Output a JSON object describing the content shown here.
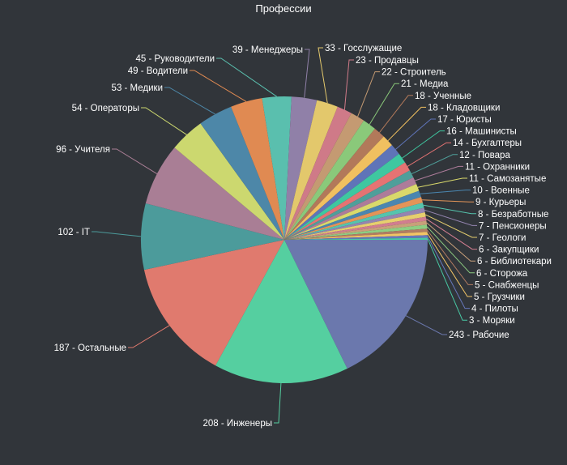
{
  "chart_data": {
    "type": "pie",
    "title": "Профессии",
    "slices": [
      {
        "label": "243 - Рабочие",
        "name": "Рабочие",
        "value": 243,
        "color": "#6b78ad"
      },
      {
        "label": "208 - Инженеры",
        "name": "Инженеры",
        "value": 208,
        "color": "#55cfa0"
      },
      {
        "label": "187 - Остальные",
        "name": "Остальные",
        "value": 187,
        "color": "#e07a6e"
      },
      {
        "label": "102 - IT",
        "name": "IT",
        "value": 102,
        "color": "#4c9b9b"
      },
      {
        "label": "96 - Учителя",
        "name": "Учителя",
        "value": 96,
        "color": "#a97e95"
      },
      {
        "label": "54 - Операторы",
        "name": "Операторы",
        "value": 54,
        "color": "#ccd86f"
      },
      {
        "label": "53 - Медики",
        "name": "Медики",
        "value": 53,
        "color": "#4d87a8"
      },
      {
        "label": "49 - Водители",
        "name": "Водители",
        "value": 49,
        "color": "#e08a52"
      },
      {
        "label": "45 - Руководители",
        "name": "Руководители",
        "value": 45,
        "color": "#5abfae"
      },
      {
        "label": "39 - Менеджеры",
        "name": "Менеджеры",
        "value": 39,
        "color": "#9080a8"
      },
      {
        "label": "33 - Госслужащие",
        "name": "Госслужащие",
        "value": 33,
        "color": "#e3c86c"
      },
      {
        "label": "23 - Продавцы",
        "name": "Продавцы",
        "value": 23,
        "color": "#cf7a88"
      },
      {
        "label": "22 - Строитель",
        "name": "Строитель",
        "value": 22,
        "color": "#c49a72"
      },
      {
        "label": "21 - Медиа",
        "name": "Медиа",
        "value": 21,
        "color": "#8ac97a"
      },
      {
        "label": "18 - Ученные",
        "name": "Ученные",
        "value": 18,
        "color": "#b2795a"
      },
      {
        "label": "18 - Кладовщики",
        "name": "Кладовщики",
        "value": 18,
        "color": "#f0c060"
      },
      {
        "label": "17 - Юристы",
        "name": "Юристы",
        "value": 17,
        "color": "#5f74b8"
      },
      {
        "label": "16 - Машинисты",
        "name": "Машинисты",
        "value": 16,
        "color": "#3fc7a0"
      },
      {
        "label": "14 - Бухгалтеры",
        "name": "Бухгалтеры",
        "value": 14,
        "color": "#e57373"
      },
      {
        "label": "12 - Повара",
        "name": "Повара",
        "value": 12,
        "color": "#4f9f9a"
      },
      {
        "label": "11 - Охранники",
        "name": "Охранники",
        "value": 11,
        "color": "#ad7c9a"
      },
      {
        "label": "11 - Самозанятые",
        "name": "Самозанятые",
        "value": 11,
        "color": "#d9d96b"
      },
      {
        "label": "10 - Военные",
        "name": "Военные",
        "value": 10,
        "color": "#4a86b0"
      },
      {
        "label": "9 - Курьеры",
        "name": "Курьеры",
        "value": 9,
        "color": "#e39458"
      },
      {
        "label": "8 - Безработные",
        "name": "Безработные",
        "value": 8,
        "color": "#55c4ad"
      },
      {
        "label": "7 - Пенсионеры",
        "name": "Пенсионеры",
        "value": 7,
        "color": "#9485b0"
      },
      {
        "label": "7 - Геологи",
        "name": "Геологи",
        "value": 7,
        "color": "#e6cf6e"
      },
      {
        "label": "6 - Закупщики",
        "name": "Закупщики",
        "value": 6,
        "color": "#d17d90"
      },
      {
        "label": "6 - Библиотекари",
        "name": "Библиотекари",
        "value": 6,
        "color": "#c8a07a"
      },
      {
        "label": "6 - Сторожа",
        "name": "Сторожа",
        "value": 6,
        "color": "#8ecd82"
      },
      {
        "label": "5 - Снабженцы",
        "name": "Снабженцы",
        "value": 5,
        "color": "#b27c62"
      },
      {
        "label": "5 - Грузчики",
        "name": "Грузчики",
        "value": 5,
        "color": "#f2c465"
      },
      {
        "label": "4 - Пилоты",
        "name": "Пилоты",
        "value": 4,
        "color": "#6677bb"
      },
      {
        "label": "3 - Моряки",
        "name": "Моряки",
        "value": 3,
        "color": "#48c9a4"
      }
    ]
  }
}
